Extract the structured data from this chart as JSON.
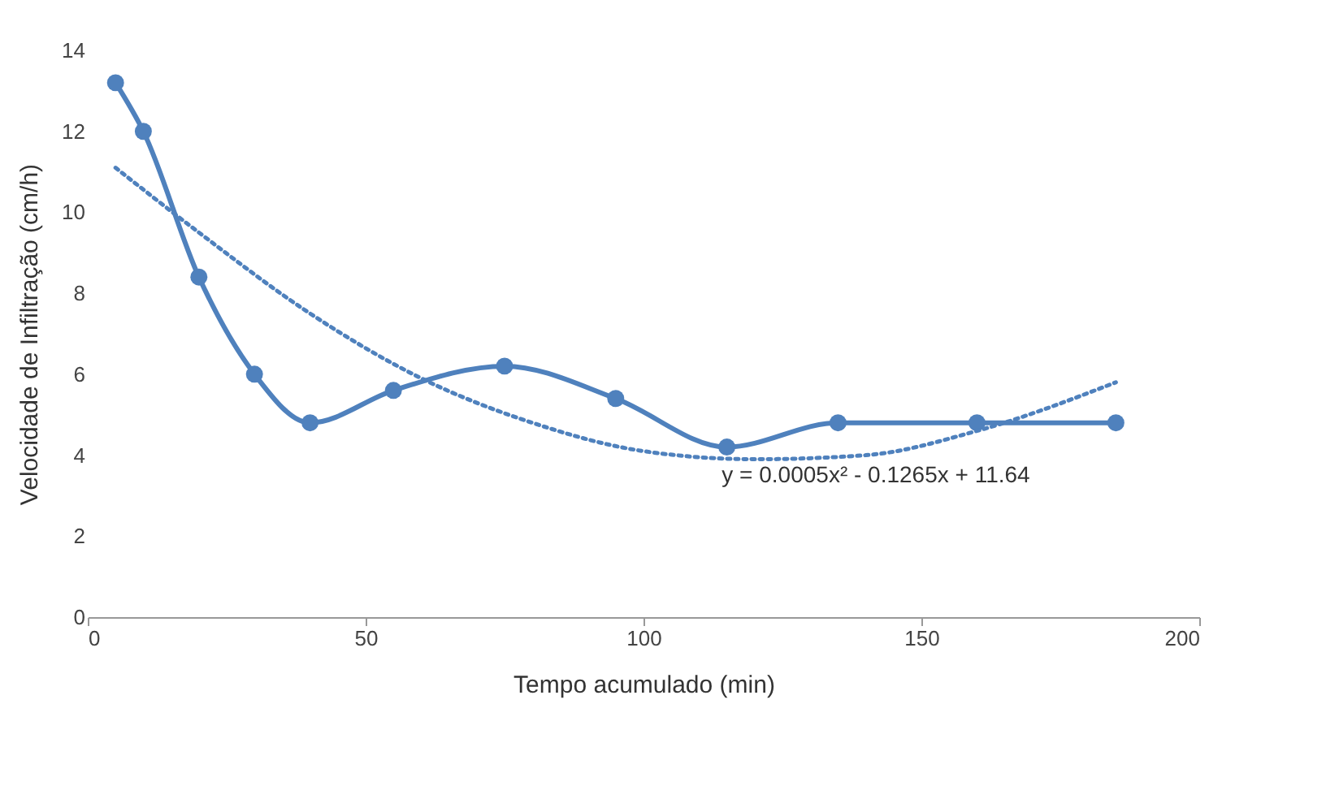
{
  "chart_data": {
    "type": "line",
    "xlabel": "Tempo acumulado (min)",
    "ylabel": "Velocidade de Infiltração (cm/h)",
    "xlim": [
      0,
      200
    ],
    "xticks": [
      0,
      50,
      100,
      150,
      200
    ],
    "ylim": [
      0,
      14
    ],
    "yticks": [
      0,
      2,
      4,
      6,
      8,
      10,
      12,
      14
    ],
    "grid": false,
    "series": [
      {
        "color": "#4f81bd",
        "marker": "circle",
        "line_style": "solid",
        "x": [
          5,
          10,
          20,
          30,
          40,
          55,
          75,
          95,
          115,
          135,
          160,
          185
        ],
        "values": [
          13.2,
          12,
          8.4,
          6,
          4.8,
          5.6,
          6.2,
          5.4,
          4.2,
          4.8,
          4.8,
          4.8
        ]
      },
      {
        "type": "line",
        "color": "#4f81bd",
        "marker": "none",
        "line_style": "dotted",
        "x": [
          5,
          20,
          40,
          60,
          80,
          100,
          120,
          140,
          160,
          185
        ],
        "values": [
          11.1,
          9.5,
          7.5,
          5.9,
          4.8,
          4.1,
          3.9,
          4.0,
          4.6,
          5.8
        ]
      }
    ],
    "annotations": [
      "y = 0.0005x² - 0.1265x + 11.64"
    ]
  }
}
